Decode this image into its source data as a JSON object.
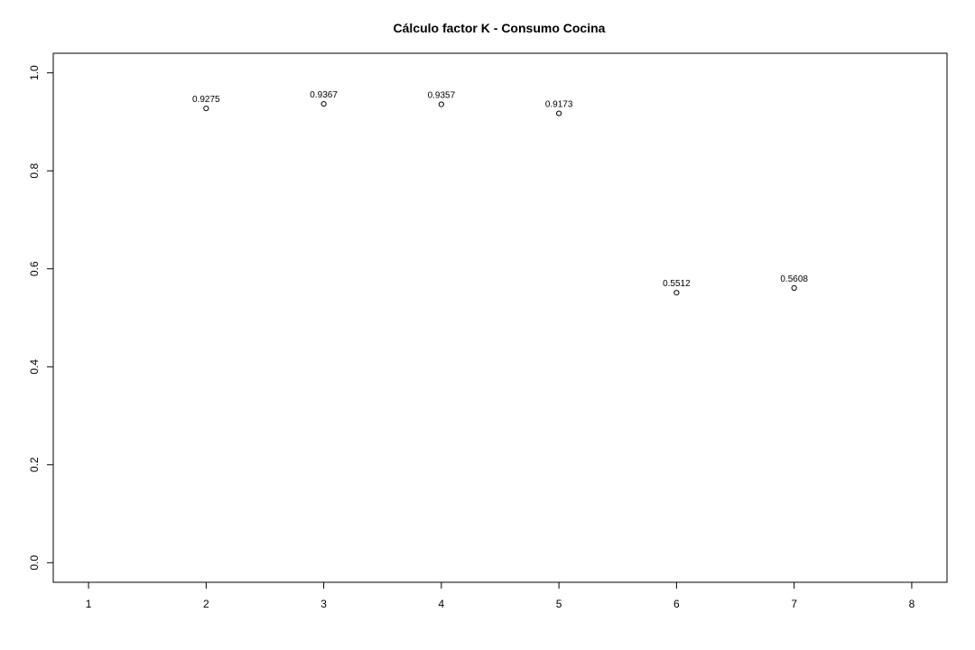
{
  "chart_data": {
    "type": "scatter",
    "title": "Cálculo factor K - Consumo Cocina",
    "xlabel": "",
    "ylabel": "",
    "xlim": [
      0.7,
      8.3
    ],
    "ylim": [
      -0.04,
      1.04
    ],
    "x_ticks": [
      "1",
      "2",
      "3",
      "4",
      "5",
      "6",
      "7",
      "8"
    ],
    "y_ticks": [
      "0.0",
      "0.2",
      "0.4",
      "0.6",
      "0.8",
      "1.0"
    ],
    "points": [
      {
        "x": 2,
        "y": 0.9275,
        "label": "0.9275"
      },
      {
        "x": 3,
        "y": 0.9367,
        "label": "0.9367"
      },
      {
        "x": 4,
        "y": 0.9357,
        "label": "0.9357"
      },
      {
        "x": 5,
        "y": 0.9173,
        "label": "0.9173"
      },
      {
        "x": 6,
        "y": 0.5512,
        "label": "0.5512"
      },
      {
        "x": 7,
        "y": 0.5608,
        "label": "0.5608"
      }
    ],
    "grid": false,
    "legend": "none",
    "marker": "open-circle",
    "color": "#000000"
  }
}
